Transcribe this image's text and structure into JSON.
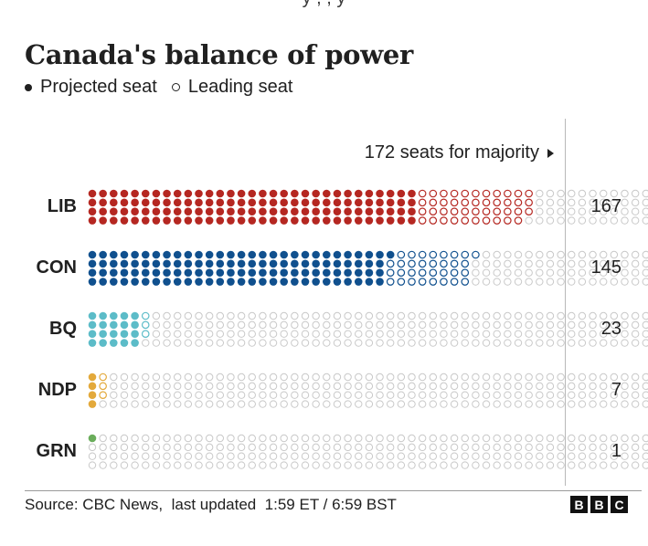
{
  "header": {
    "cut_text": "y                    ,                    ,        y",
    "title": "Canada's balance of power",
    "legend_projected": "Projected seat",
    "legend_leading": "Leading seat"
  },
  "majority_label": "172 seats for majority",
  "chart_data": {
    "type": "waffle",
    "title": "Canada's balance of power",
    "total_seats": 343,
    "majority": 172,
    "legend": [
      "Projected seat",
      "Leading seat"
    ],
    "series": [
      {
        "party": "LIB",
        "seats": 167,
        "projected": 124,
        "leading": 43,
        "color": "#b52721"
      },
      {
        "party": "CON",
        "seats": 145,
        "projected": 113,
        "leading": 32,
        "color": "#10508e"
      },
      {
        "party": "BQ",
        "seats": 23,
        "projected": 20,
        "leading": 3,
        "color": "#5cbcc8"
      },
      {
        "party": "NDP",
        "seats": 7,
        "projected": 4,
        "leading": 3,
        "color": "#e3a93b"
      },
      {
        "party": "GRN",
        "seats": 1,
        "projected": 1,
        "leading": 0,
        "color": "#6aad5b"
      }
    ],
    "empty_color": "#c8c8c8"
  },
  "footer": {
    "source": "Source: CBC News,  last updated  1:59 ET / 6:59 BST",
    "logo_letters": [
      "B",
      "B",
      "C"
    ]
  }
}
